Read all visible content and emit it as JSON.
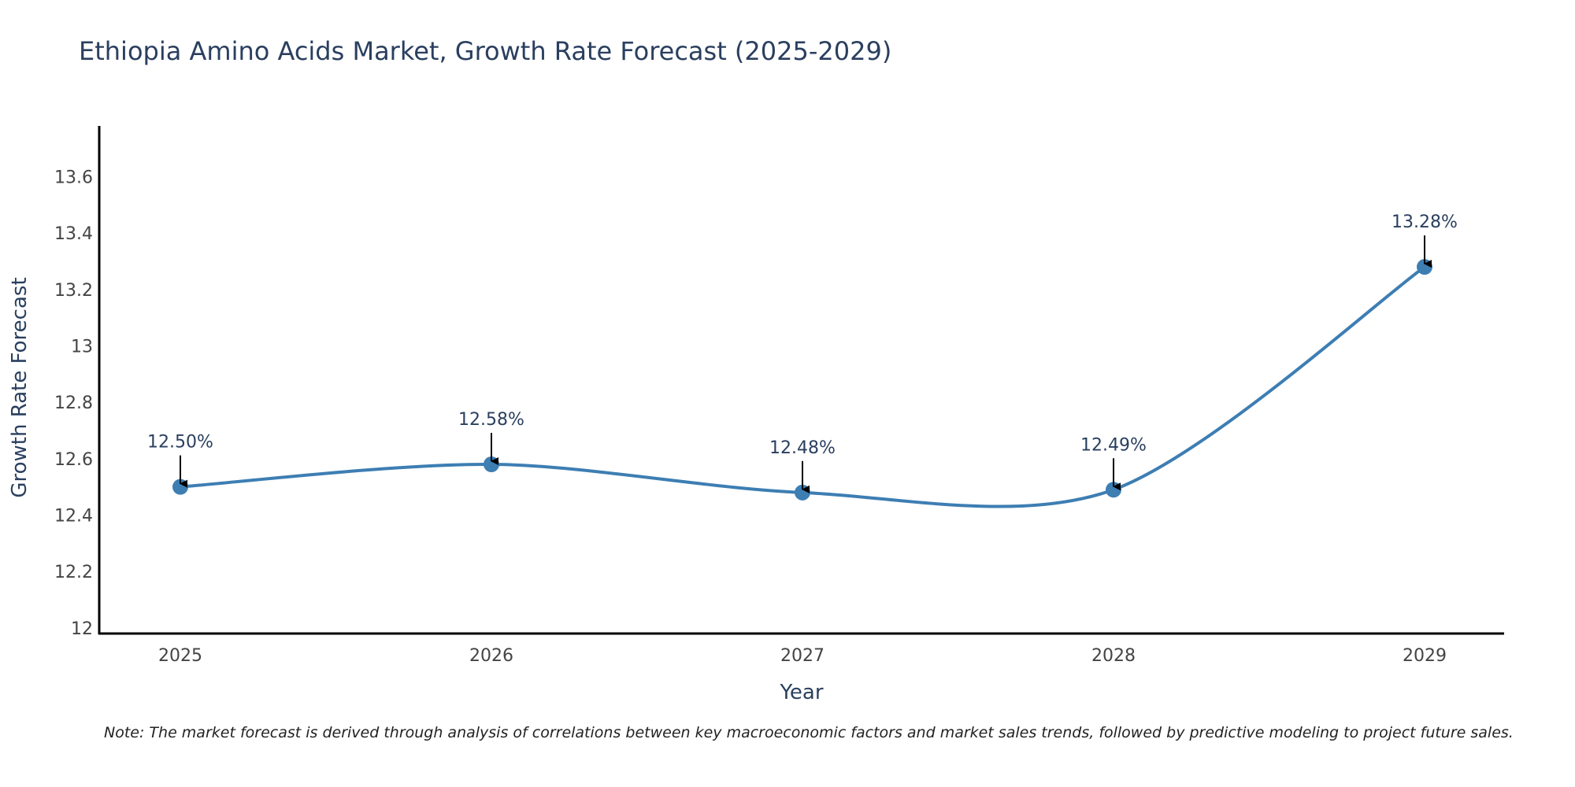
{
  "chart_data": {
    "type": "line",
    "title": "Ethiopia Amino Acids Market, Growth Rate Forecast (2025-2029)",
    "xlabel": "Year",
    "ylabel": "Growth Rate Forecast",
    "categories": [
      "2025",
      "2026",
      "2027",
      "2028",
      "2029"
    ],
    "series": [
      {
        "name": "Growth Rate Forecast",
        "values": [
          12.5,
          12.58,
          12.48,
          12.49,
          13.28
        ],
        "labels": [
          "12.50%",
          "12.58%",
          "12.48%",
          "12.49%",
          "13.28%"
        ],
        "color": "#3d7eb3"
      }
    ],
    "ylim": [
      11.98,
      13.78
    ],
    "yticks": [
      12,
      12.2,
      12.4,
      12.6,
      12.8,
      13,
      13.2,
      13.4,
      13.6
    ],
    "ytick_labels": [
      "12",
      "12.2",
      "12.4",
      "12.6",
      "12.8",
      "13",
      "13.2",
      "13.4",
      "13.6"
    ],
    "grid": false,
    "line_shape": "spline"
  },
  "note": "Note: The market forecast is derived through analysis of correlations between key macroeconomic factors and market sales trends, followed by predictive modeling to project future sales."
}
